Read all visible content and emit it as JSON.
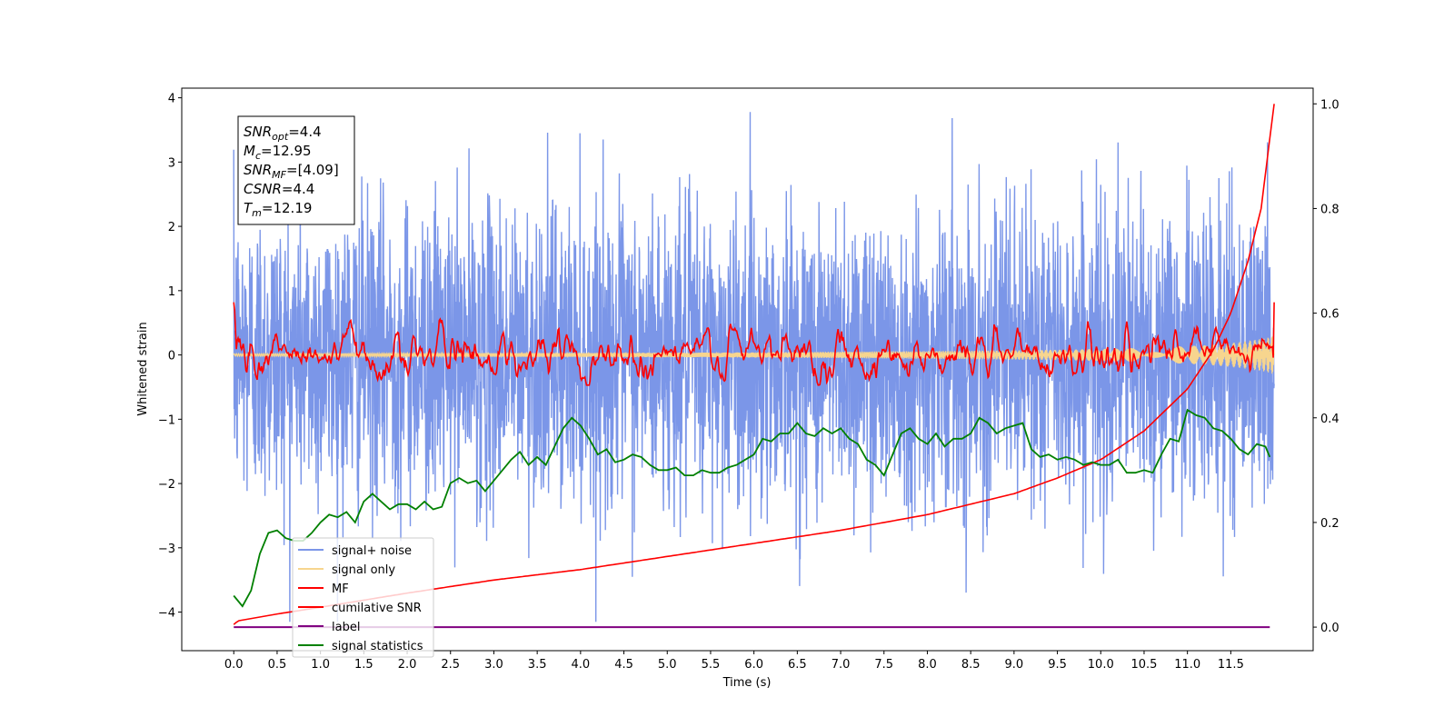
{
  "chart_data": {
    "type": "line",
    "title": "",
    "xlabel": "Time (s)",
    "ylabel": "Whitened strain",
    "xlim": [
      -0.6,
      12.45
    ],
    "ylim": [
      -4.6,
      4.15
    ],
    "ylim_right": [
      -0.045,
      1.03
    ],
    "xticks": [
      0.0,
      0.5,
      1.0,
      1.5,
      2.0,
      2.5,
      3.0,
      3.5,
      4.0,
      4.5,
      5.0,
      5.5,
      6.0,
      6.5,
      7.0,
      7.5,
      8.0,
      8.5,
      9.0,
      9.5,
      10.0,
      10.5,
      11.0,
      11.5
    ],
    "xtick_labels": [
      "0.0",
      "0.5",
      "1.0",
      "1.5",
      "2.0",
      "2.5",
      "3.0",
      "3.5",
      "4.0",
      "4.5",
      "5.0",
      "5.5",
      "6.0",
      "6.5",
      "7.0",
      "7.5",
      "8.0",
      "8.5",
      "9.0",
      "9.5",
      "10.0",
      "10.5",
      "11.0",
      "11.5"
    ],
    "yticks": [
      -4,
      -3,
      -2,
      -1,
      0,
      1,
      2,
      3,
      4
    ],
    "ytick_labels": [
      "−4",
      "−3",
      "−2",
      "−1",
      "0",
      "1",
      "2",
      "3",
      "4"
    ],
    "yticks_right": [
      0.0,
      0.2,
      0.4,
      0.6,
      0.8,
      1.0
    ],
    "ytick_labels_right": [
      "0.0",
      "0.2",
      "0.4",
      "0.6",
      "0.8",
      "1.0"
    ],
    "grid": false,
    "legend_position": "lower-left",
    "legend": [
      {
        "label": "signal+ noise",
        "color": "#7b96e8"
      },
      {
        "label": "signal only",
        "color": "#f7d58e"
      },
      {
        "label": "MF",
        "color": "#ff0000"
      },
      {
        "label": "cumilative SNR",
        "color": "#ff0000"
      },
      {
        "label": "label",
        "color": "#800080"
      },
      {
        "label": "signal statistics",
        "color": "#008000"
      }
    ],
    "annotations": [
      {
        "base": "SNR",
        "sub": "opt",
        "rest": "=4.4"
      },
      {
        "base": "M",
        "sub": "c",
        "rest": "=12.95"
      },
      {
        "base": "SNR",
        "sub": "MF",
        "rest": "=[4.09]"
      },
      {
        "base": "CSNR",
        "sub": "",
        "rest": "=4.4"
      },
      {
        "base": "T",
        "sub": "m",
        "rest": "=12.19"
      }
    ],
    "series": [
      {
        "name": "signal+ noise",
        "color": "#7b96e8",
        "axis": "left",
        "x_range": [
          0.0,
          12.0
        ],
        "sample_rate": 300,
        "approx_std": 1.15,
        "approx_min": -4.15,
        "approx_max": 3.78
      },
      {
        "name": "signal only",
        "color": "#f7d58e",
        "axis": "left",
        "x": [
          0.0,
          2.0,
          4.0,
          6.0,
          8.0,
          9.5,
          10.5,
          11.2,
          11.6,
          11.9,
          12.0
        ],
        "envelope": [
          0.02,
          0.025,
          0.03,
          0.04,
          0.06,
          0.08,
          0.11,
          0.15,
          0.2,
          0.26,
          0.3
        ]
      },
      {
        "name": "MF",
        "color": "#ff0000",
        "axis": "left",
        "x_range": [
          0.0,
          12.0
        ],
        "sample_rate": 100,
        "start_value": 1.0,
        "end_value": 0.95,
        "approx_range": [
          -0.45,
          0.8
        ]
      },
      {
        "name": "cumilative SNR",
        "color": "#ff0000",
        "axis": "right",
        "x": [
          0.0,
          0.05,
          0.5,
          1.0,
          2.0,
          3.0,
          4.0,
          5.0,
          6.0,
          7.0,
          8.0,
          9.0,
          9.5,
          10.0,
          10.5,
          11.0,
          11.3,
          11.5,
          11.7,
          11.85,
          12.0
        ],
        "y": [
          0.005,
          0.012,
          0.025,
          0.038,
          0.065,
          0.09,
          0.11,
          0.135,
          0.16,
          0.185,
          0.215,
          0.255,
          0.285,
          0.32,
          0.375,
          0.455,
          0.53,
          0.6,
          0.7,
          0.8,
          1.0
        ]
      },
      {
        "name": "label",
        "color": "#800080",
        "axis": "right",
        "x": [
          0.0,
          11.95
        ],
        "y": [
          0.0,
          0.0
        ]
      },
      {
        "name": "signal statistics",
        "color": "#008000",
        "axis": "right",
        "x": [
          0.0,
          0.1,
          0.2,
          0.3,
          0.4,
          0.5,
          0.6,
          0.7,
          0.8,
          0.9,
          1.0,
          1.1,
          1.2,
          1.3,
          1.4,
          1.5,
          1.6,
          1.7,
          1.8,
          1.9,
          2.0,
          2.1,
          2.2,
          2.3,
          2.4,
          2.5,
          2.6,
          2.7,
          2.8,
          2.9,
          3.0,
          3.1,
          3.2,
          3.3,
          3.4,
          3.5,
          3.6,
          3.7,
          3.8,
          3.9,
          4.0,
          4.1,
          4.2,
          4.3,
          4.4,
          4.5,
          4.6,
          4.7,
          4.8,
          4.9,
          5.0,
          5.1,
          5.2,
          5.3,
          5.4,
          5.5,
          5.6,
          5.7,
          5.8,
          5.9,
          6.0,
          6.1,
          6.2,
          6.3,
          6.4,
          6.5,
          6.6,
          6.7,
          6.8,
          6.9,
          7.0,
          7.1,
          7.2,
          7.3,
          7.4,
          7.5,
          7.6,
          7.7,
          7.8,
          7.9,
          8.0,
          8.1,
          8.2,
          8.3,
          8.4,
          8.5,
          8.6,
          8.7,
          8.8,
          8.9,
          9.0,
          9.1,
          9.2,
          9.3,
          9.4,
          9.5,
          9.6,
          9.7,
          9.8,
          9.9,
          10.0,
          10.1,
          10.2,
          10.3,
          10.4,
          10.5,
          10.6,
          10.7,
          10.8,
          10.9,
          11.0,
          11.1,
          11.2,
          11.3,
          11.4,
          11.5,
          11.6,
          11.7,
          11.8,
          11.9,
          11.95
        ],
        "y": [
          0.06,
          0.04,
          0.07,
          0.14,
          0.18,
          0.185,
          0.17,
          0.165,
          0.165,
          0.18,
          0.2,
          0.215,
          0.21,
          0.22,
          0.2,
          0.24,
          0.255,
          0.24,
          0.225,
          0.235,
          0.235,
          0.225,
          0.24,
          0.225,
          0.23,
          0.275,
          0.285,
          0.275,
          0.28,
          0.26,
          0.28,
          0.3,
          0.32,
          0.335,
          0.31,
          0.325,
          0.31,
          0.345,
          0.38,
          0.4,
          0.385,
          0.36,
          0.33,
          0.34,
          0.315,
          0.32,
          0.33,
          0.325,
          0.31,
          0.3,
          0.3,
          0.305,
          0.29,
          0.29,
          0.3,
          0.295,
          0.295,
          0.305,
          0.31,
          0.32,
          0.33,
          0.36,
          0.355,
          0.37,
          0.37,
          0.39,
          0.37,
          0.365,
          0.38,
          0.37,
          0.38,
          0.36,
          0.35,
          0.32,
          0.31,
          0.29,
          0.33,
          0.37,
          0.38,
          0.36,
          0.35,
          0.37,
          0.345,
          0.36,
          0.36,
          0.37,
          0.4,
          0.39,
          0.37,
          0.38,
          0.385,
          0.39,
          0.34,
          0.325,
          0.33,
          0.32,
          0.325,
          0.32,
          0.31,
          0.315,
          0.31,
          0.31,
          0.32,
          0.295,
          0.295,
          0.3,
          0.295,
          0.33,
          0.36,
          0.355,
          0.415,
          0.405,
          0.4,
          0.38,
          0.375,
          0.36,
          0.34,
          0.33,
          0.35,
          0.345,
          0.325
        ]
      }
    ]
  }
}
